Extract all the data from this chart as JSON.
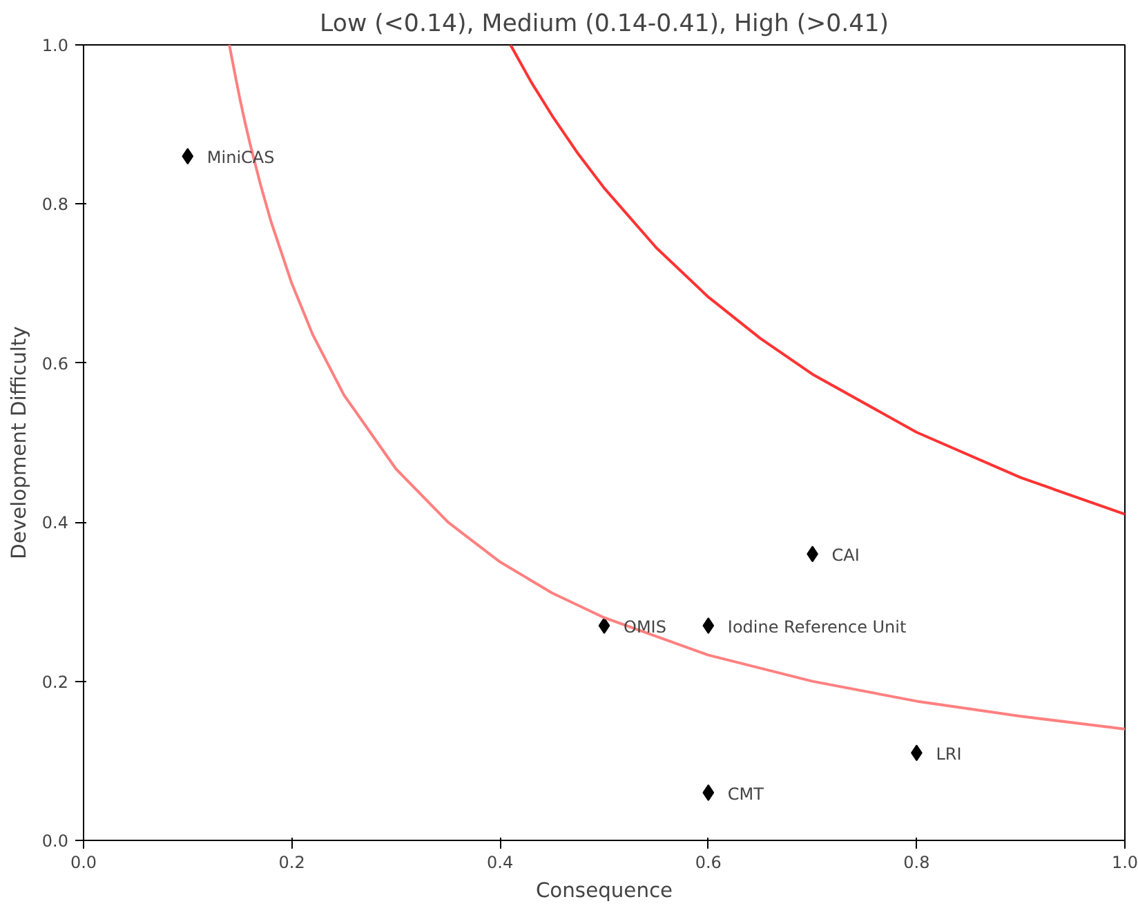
{
  "chart_data": {
    "type": "scatter",
    "title": "Low (<0.14), Medium (0.14-0.41), High (>0.41)",
    "xlabel": "Consequence",
    "ylabel": "Development Difficulty",
    "xlim": [
      0,
      1
    ],
    "ylim": [
      0,
      1
    ],
    "xticks": [
      {
        "value": 0,
        "label": "0.0"
      },
      {
        "value": 0.2,
        "label": "0.2"
      },
      {
        "value": 0.4,
        "label": "0.4"
      },
      {
        "value": 0.6,
        "label": "0.6"
      },
      {
        "value": 0.8,
        "label": "0.8"
      },
      {
        "value": 1,
        "label": "1.0"
      }
    ],
    "yticks": [
      {
        "value": 0,
        "label": "0.0"
      },
      {
        "value": 0.2,
        "label": "0.2"
      },
      {
        "value": 0.4,
        "label": "0.4"
      },
      {
        "value": 0.6,
        "label": "0.6"
      },
      {
        "value": 0.8,
        "label": "0.8"
      },
      {
        "value": 1,
        "label": "1.0"
      }
    ],
    "grid": false,
    "series": [
      {
        "color": "#000000",
        "marker": "diamond",
        "x": [
          0.1,
          0.5,
          0.6,
          0.7,
          0.8,
          0.6
        ],
        "values": [
          0.86,
          0.27,
          0.27,
          0.36,
          0.11,
          0.06
        ]
      },
      {
        "type": "line",
        "color": "#ff8080",
        "marker": "none",
        "x": [
          0.14,
          0.145,
          0.15,
          0.155,
          0.16,
          0.17,
          0.18,
          0.2,
          0.22,
          0.25,
          0.3,
          0.35,
          0.4,
          0.45,
          0.5,
          0.6,
          0.7,
          0.8,
          0.9,
          1.0
        ],
        "values": [
          1.0,
          0.966,
          0.933,
          0.903,
          0.875,
          0.824,
          0.778,
          0.7,
          0.636,
          0.56,
          0.467,
          0.4,
          0.35,
          0.311,
          0.28,
          0.233,
          0.2,
          0.175,
          0.156,
          0.14
        ]
      },
      {
        "type": "line",
        "color": "#ff3333",
        "marker": "none",
        "x": [
          0.41,
          0.43,
          0.45,
          0.475,
          0.5,
          0.55,
          0.6,
          0.65,
          0.7,
          0.8,
          0.9,
          1.0
        ],
        "values": [
          1.0,
          0.953,
          0.911,
          0.863,
          0.82,
          0.745,
          0.683,
          0.631,
          0.586,
          0.513,
          0.456,
          0.41
        ]
      }
    ],
    "annotations": [
      {
        "text": "MiniCAS",
        "x": 0.1,
        "y": 0.86
      },
      {
        "text": "OMIS",
        "x": 0.5,
        "y": 0.27
      },
      {
        "text": "Iodine Reference Unit",
        "x": 0.6,
        "y": 0.27
      },
      {
        "text": "CAI",
        "x": 0.7,
        "y": 0.36
      },
      {
        "text": "LRI",
        "x": 0.8,
        "y": 0.11
      },
      {
        "text": "CMT",
        "x": 0.6,
        "y": 0.06
      }
    ]
  }
}
